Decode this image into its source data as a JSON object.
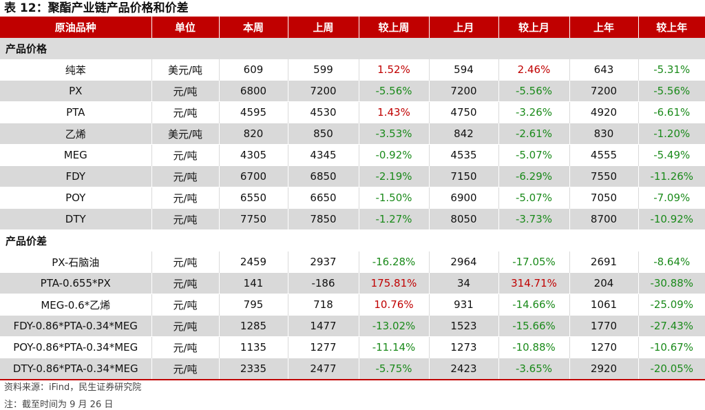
{
  "title": "表 12：聚酯产业链产品价格和价差",
  "headers": [
    "原油品种",
    "单位",
    "本周",
    "上周",
    "较上周",
    "上月",
    "较上月",
    "上年",
    "较上年"
  ],
  "sections": [
    {
      "label": "产品价格",
      "rows": [
        [
          "纯苯",
          "美元/吨",
          "609",
          "599",
          "1.52%",
          "594",
          "2.46%",
          "643",
          "-5.31%"
        ],
        [
          "PX",
          "元/吨",
          "6800",
          "7200",
          "-5.56%",
          "7200",
          "-5.56%",
          "7200",
          "-5.56%"
        ],
        [
          "PTA",
          "元/吨",
          "4595",
          "4530",
          "1.43%",
          "4750",
          "-3.26%",
          "4920",
          "-6.61%"
        ],
        [
          "乙烯",
          "美元/吨",
          "820",
          "850",
          "-3.53%",
          "842",
          "-2.61%",
          "830",
          "-1.20%"
        ],
        [
          "MEG",
          "元/吨",
          "4305",
          "4345",
          "-0.92%",
          "4535",
          "-5.07%",
          "4555",
          "-5.49%"
        ],
        [
          "FDY",
          "元/吨",
          "6700",
          "6850",
          "-2.19%",
          "7150",
          "-6.29%",
          "7550",
          "-11.26%"
        ],
        [
          "POY",
          "元/吨",
          "6550",
          "6650",
          "-1.50%",
          "6900",
          "-5.07%",
          "7050",
          "-7.09%"
        ],
        [
          "DTY",
          "元/吨",
          "7750",
          "7850",
          "-1.27%",
          "8050",
          "-3.73%",
          "8700",
          "-10.92%"
        ]
      ]
    },
    {
      "label": "产品价差",
      "rows": [
        [
          "PX-石脑油",
          "元/吨",
          "2459",
          "2937",
          "-16.28%",
          "2964",
          "-17.05%",
          "2691",
          "-8.64%"
        ],
        [
          "PTA-0.655*PX",
          "元/吨",
          "141",
          "-186",
          "175.81%",
          "34",
          "314.71%",
          "204",
          "-30.88%"
        ],
        [
          "MEG-0.6*乙烯",
          "元/吨",
          "795",
          "718",
          "10.76%",
          "931",
          "-14.66%",
          "1061",
          "-25.09%"
        ],
        [
          "FDY-0.86*PTA-0.34*MEG",
          "元/吨",
          "1285",
          "1477",
          "-13.02%",
          "1523",
          "-15.66%",
          "1770",
          "-27.43%"
        ],
        [
          "POY-0.86*PTA-0.34*MEG",
          "元/吨",
          "1135",
          "1277",
          "-11.14%",
          "1273",
          "-10.88%",
          "1270",
          "-10.67%"
        ],
        [
          "DTY-0.86*PTA-0.34*MEG",
          "元/吨",
          "2335",
          "2477",
          "-5.75%",
          "2423",
          "-3.65%",
          "2920",
          "-20.05%"
        ]
      ]
    }
  ],
  "source": "资料来源：iFind，民生证券研究院",
  "note": "注：截至时间为 9 月 26 日",
  "colors": {
    "header_bg": "#c00000",
    "positive": "#c00000",
    "negative": "#1a8a1a",
    "stripe": "#d9d9d9"
  }
}
